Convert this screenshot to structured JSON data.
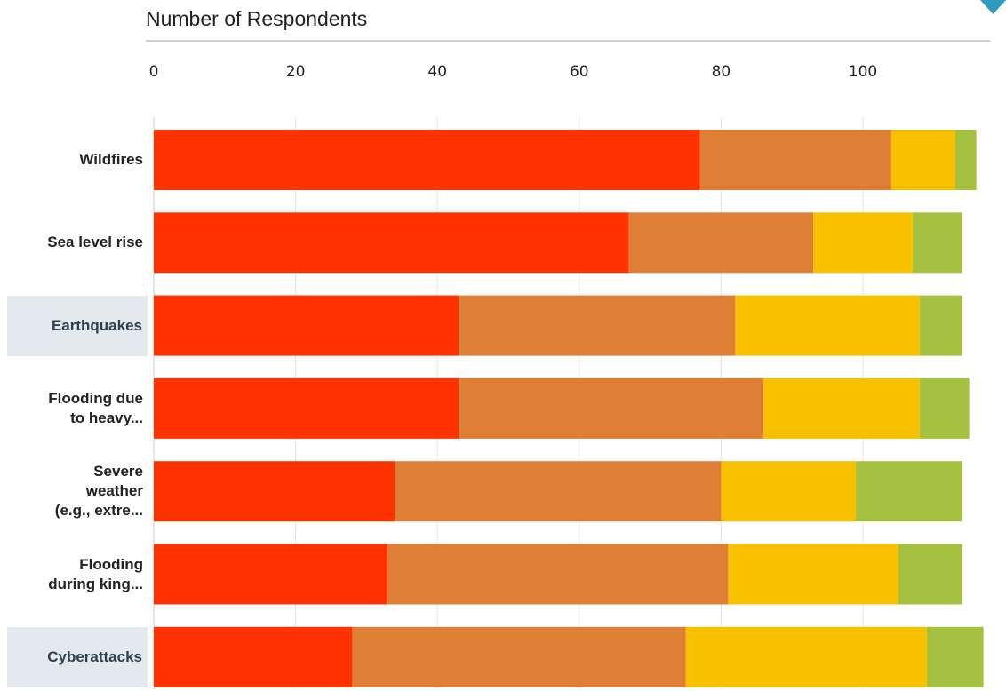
{
  "axis_title": "Number of Respondents",
  "icons": {
    "dropdown": "chevron-down-icon"
  },
  "colors": {
    "series": [
      "#ff3300",
      "#df7f36",
      "#f7c100",
      "#a6c140"
    ],
    "highlight_bg": "#e3e9ec",
    "grid": "#e6e6e6",
    "dropdown": "#2e9abe"
  },
  "chart_data": {
    "type": "bar",
    "orientation": "horizontal",
    "stacked": true,
    "xlabel": "Number of Respondents",
    "xlim": [
      0,
      115
    ],
    "xticks": [
      0,
      20,
      40,
      60,
      80,
      100
    ],
    "grid": true,
    "categories": [
      "Wildfires",
      "Sea level rise",
      "Earthquakes",
      "Flooding due to heavy...",
      "Severe weather (e.g., extre...",
      "Flooding during king...",
      "Cyberattacks"
    ],
    "category_lines": [
      [
        "Wildfires"
      ],
      [
        "Sea level rise"
      ],
      [
        "Earthquakes"
      ],
      [
        "Flooding due",
        "to heavy..."
      ],
      [
        "Severe",
        "weather",
        "(e.g., extre..."
      ],
      [
        "Flooding",
        "during king..."
      ],
      [
        "Cyberattacks"
      ]
    ],
    "highlighted": [
      2,
      6
    ],
    "series": [
      {
        "values": [
          77,
          67,
          43,
          43,
          34,
          33,
          28
        ]
      },
      {
        "values": [
          27,
          26,
          39,
          43,
          46,
          48,
          47
        ]
      },
      {
        "values": [
          9,
          14,
          26,
          22,
          19,
          24,
          34
        ]
      },
      {
        "values": [
          3,
          7,
          6,
          7,
          15,
          9,
          8
        ]
      }
    ]
  }
}
